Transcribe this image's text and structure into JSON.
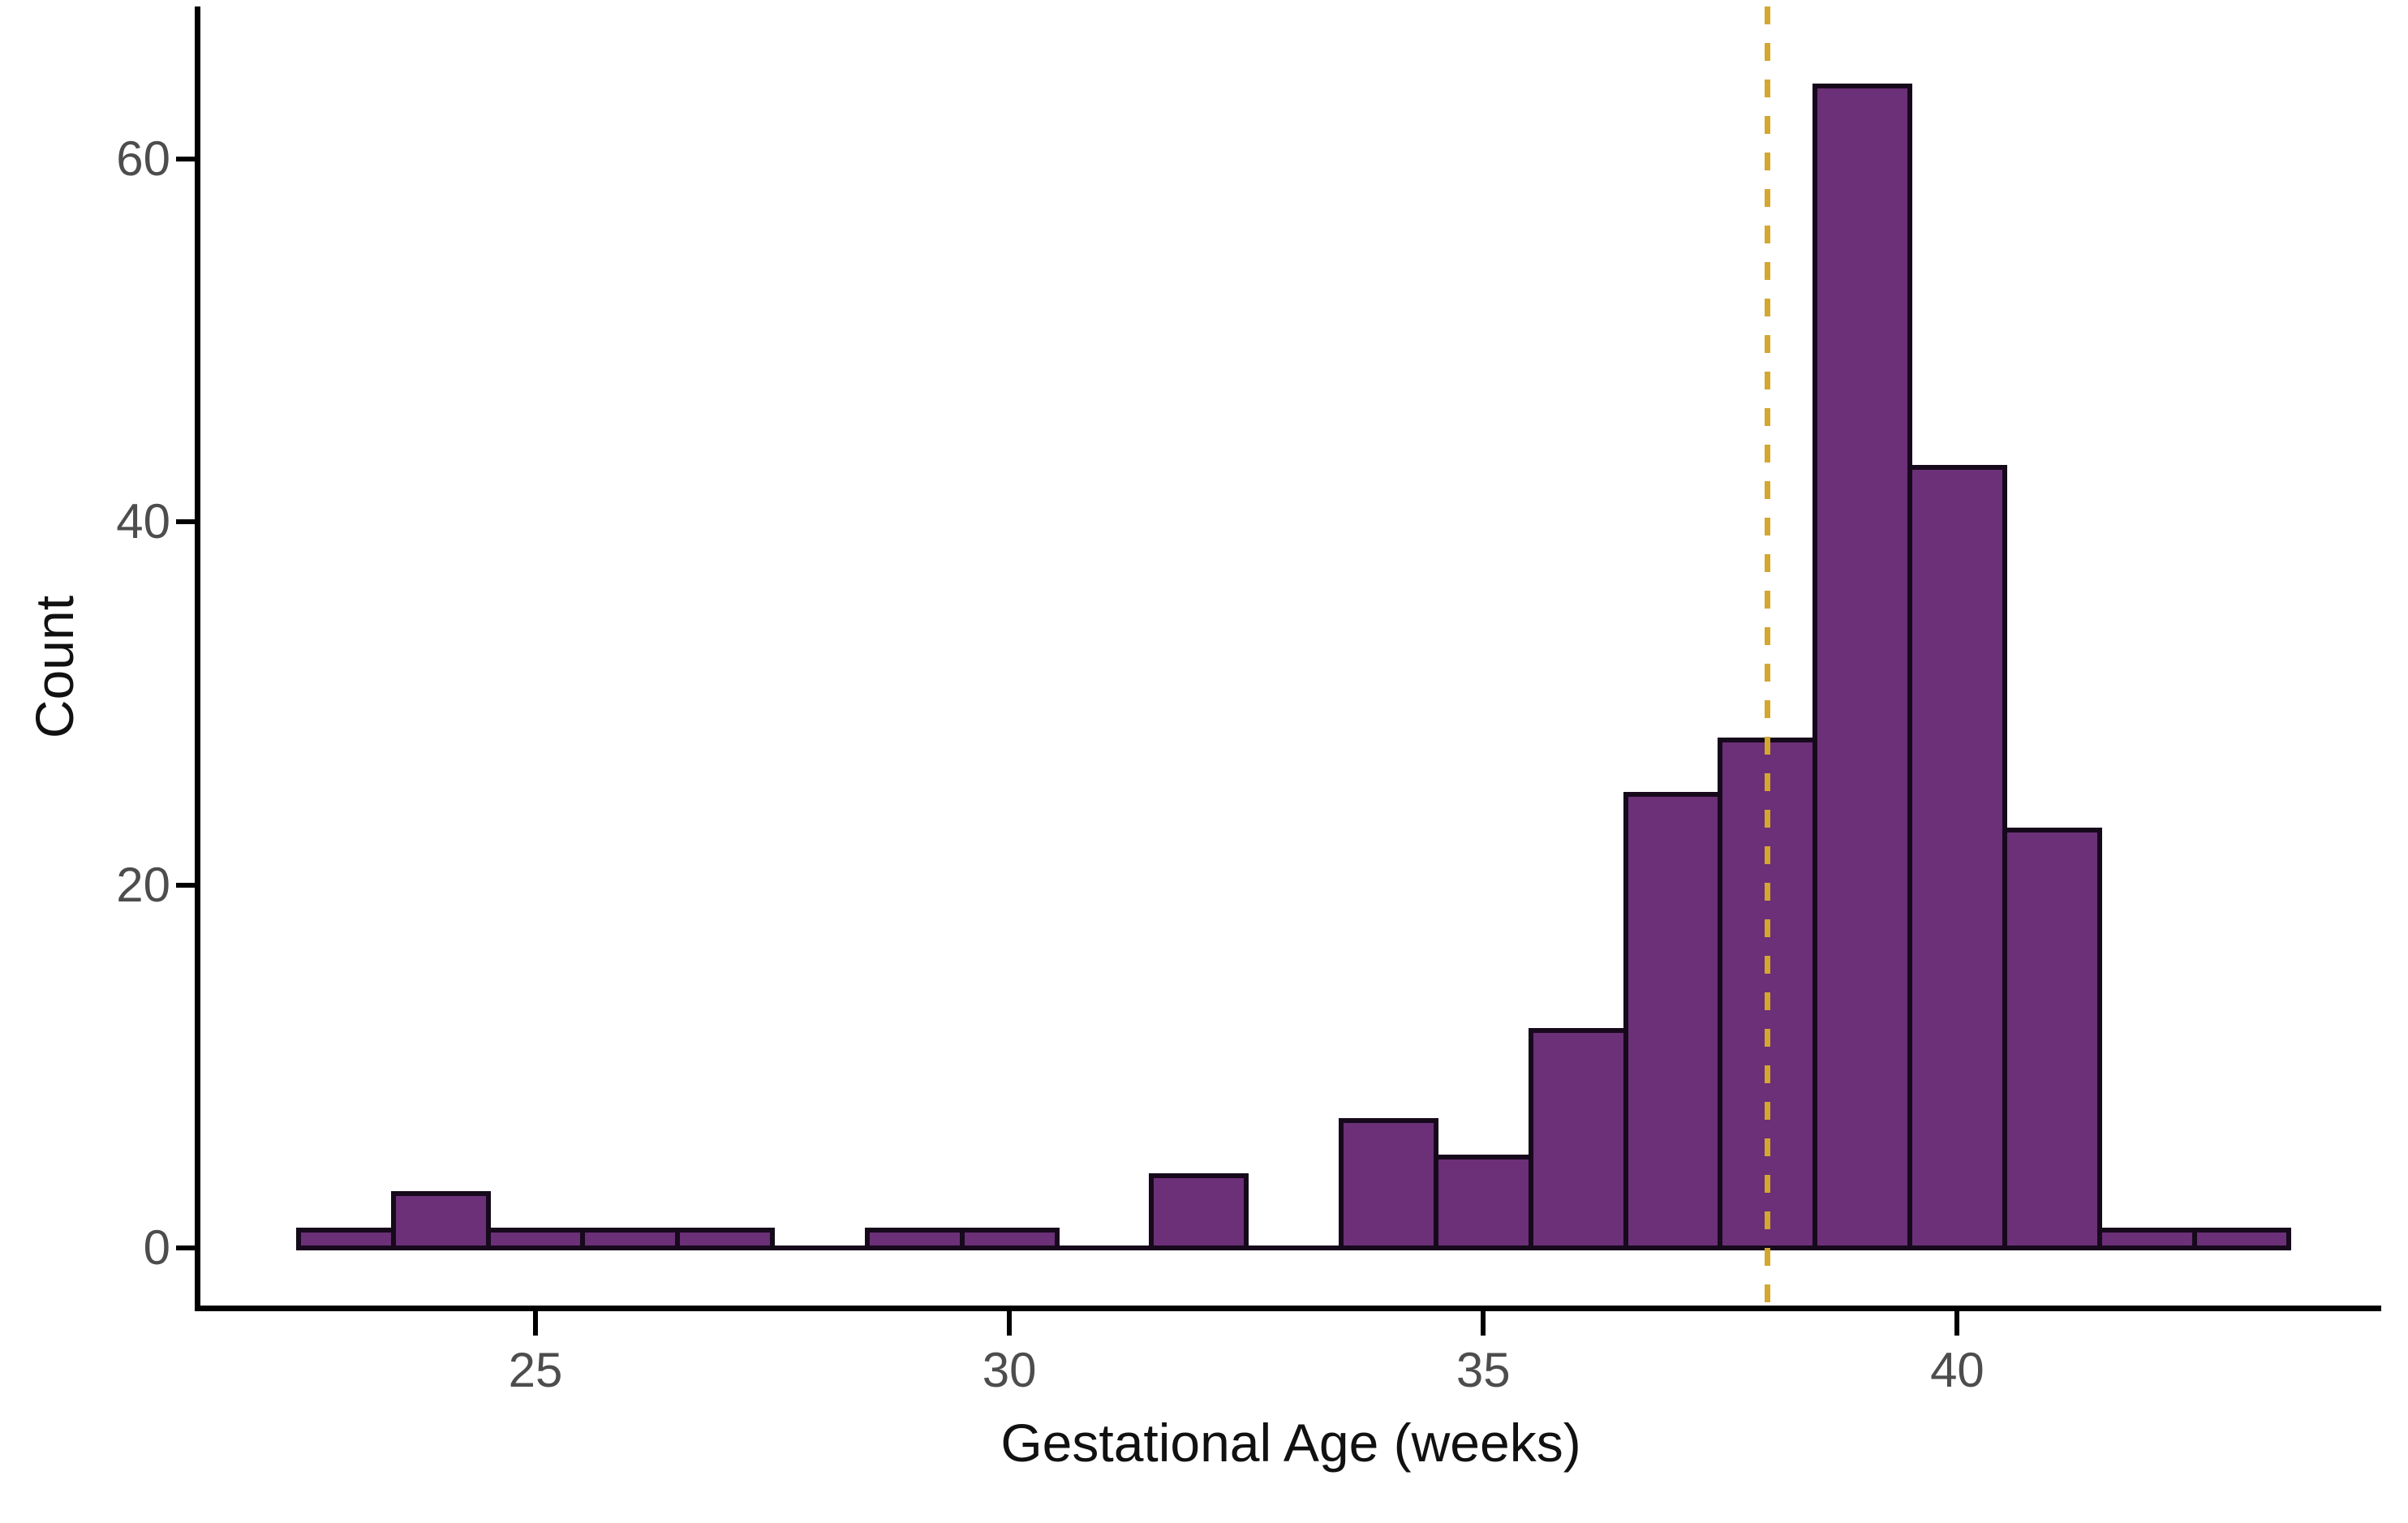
{
  "figure": {
    "background": "#FFFFFF"
  },
  "chart_data": {
    "type": "histogram",
    "title": "",
    "xlabel": "Gestational Age (weeks)",
    "ylabel": "Count",
    "bin_edges": [
      22.5,
      23.5,
      24.5,
      25.5,
      26.5,
      27.5,
      28.5,
      29.5,
      30.5,
      31.5,
      32.5,
      33.5,
      34.5,
      35.5,
      36.5,
      37.5,
      38.5,
      39.5,
      40.5,
      41.5,
      42.5,
      43.5
    ],
    "counts": [
      1,
      3,
      1,
      1,
      1,
      0,
      1,
      1,
      0,
      4,
      0,
      7,
      5,
      12,
      25,
      28,
      64,
      43,
      23,
      1,
      1
    ],
    "x_ticks": [
      25,
      30,
      35,
      40
    ],
    "y_ticks": [
      0,
      20,
      40,
      60
    ],
    "xlim": [
      21.5,
      44.5
    ],
    "ylim": [
      0,
      68
    ],
    "grid": false,
    "legend": false,
    "vline": {
      "x": 38,
      "style": "dashed",
      "color": "#D4A72E"
    },
    "colors": {
      "bar_fill": "#6B3077",
      "bar_stroke": "#16091B",
      "axis_line": "#000000",
      "tick_label": "#4D4D4D",
      "axis_title": "#111111"
    }
  }
}
